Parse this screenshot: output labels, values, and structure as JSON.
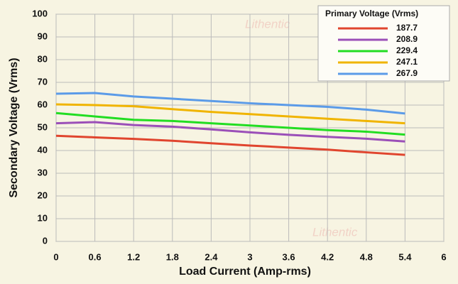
{
  "chart_data": {
    "type": "line",
    "x_label": "Load Current (Amp-rms)",
    "y_label": "Secondary Voltage (Vrms)",
    "legend_title": "Primary Voltage (Vrms)",
    "legend_position": "top-right",
    "watermark": "Lithentic",
    "grid": true,
    "xlim": [
      0,
      6
    ],
    "xticks": [
      0,
      0.6,
      1.2,
      1.8,
      2.4,
      3,
      3.6,
      4.2,
      4.8,
      5.4,
      6
    ],
    "ylim": [
      0,
      100
    ],
    "yticks": [
      0,
      10,
      20,
      30,
      40,
      50,
      60,
      70,
      80,
      90,
      100
    ],
    "x": [
      0,
      0.6,
      1.2,
      1.8,
      2.4,
      3,
      3.6,
      4.2,
      4.8,
      5.4
    ],
    "series": [
      {
        "name": "187.7",
        "color": "#e0452e",
        "values": [
          46.5,
          45.8,
          45.1,
          44.3,
          43.2,
          42.2,
          41.3,
          40.4,
          39.2,
          38.1
        ]
      },
      {
        "name": "208.9",
        "color": "#9b4fb8",
        "values": [
          52,
          52.5,
          51.2,
          50.5,
          49.3,
          48,
          46.9,
          46,
          45.2,
          44
        ]
      },
      {
        "name": "229.4",
        "color": "#22dd22",
        "values": [
          56.5,
          55,
          53.5,
          53,
          52,
          51,
          50,
          49,
          48.3,
          47
        ]
      },
      {
        "name": "247.1",
        "color": "#f0b400",
        "values": [
          60.3,
          60,
          59.5,
          58.2,
          57,
          56,
          55,
          54,
          53,
          52
        ]
      },
      {
        "name": "267.9",
        "color": "#5b9be8",
        "values": [
          65,
          65.3,
          63.8,
          62.8,
          61.8,
          60.8,
          60,
          59.2,
          58,
          56.3
        ]
      }
    ]
  }
}
